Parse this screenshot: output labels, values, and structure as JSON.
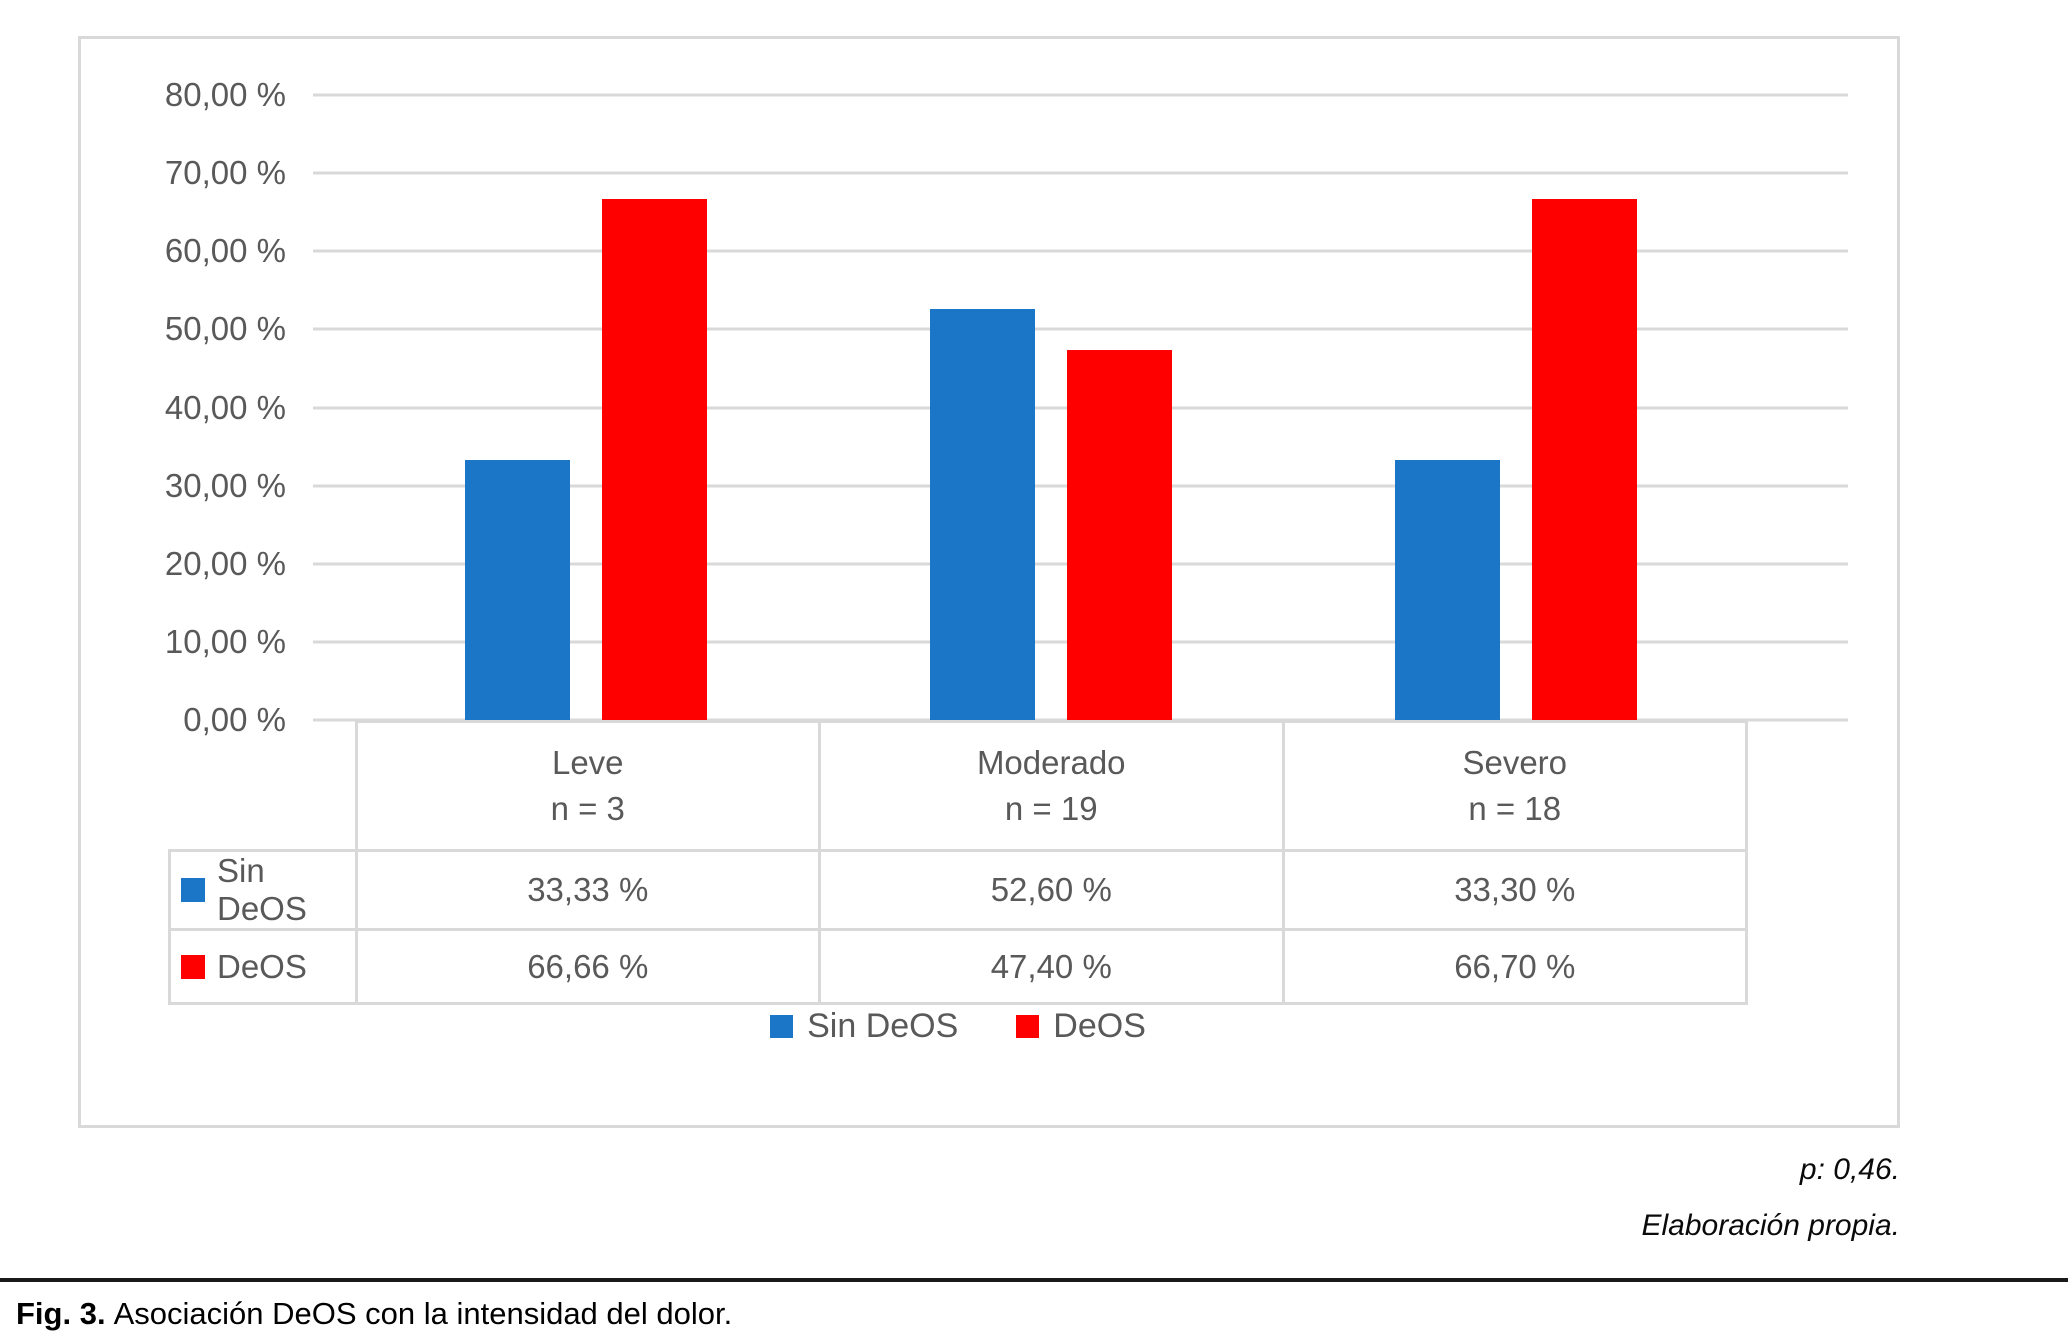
{
  "chart_data": {
    "type": "bar",
    "categories": [
      "Leve",
      "Moderado",
      "Severo"
    ],
    "category_sublabels": [
      "n = 3",
      "n = 19",
      "n = 18"
    ],
    "series": [
      {
        "name": "Sin DeOS",
        "color": "#1b76c8",
        "values": [
          33.33,
          52.6,
          33.3
        ],
        "labels": [
          "33,33 %",
          "52,60 %",
          "33,30 %"
        ]
      },
      {
        "name": "DeOS",
        "color": "#ff0000",
        "values": [
          66.66,
          47.4,
          66.7
        ],
        "labels": [
          "66,66 %",
          "47,40 %",
          "66,70 %"
        ]
      }
    ],
    "y_axis": {
      "min": 0,
      "max": 80,
      "step": 10,
      "tick_labels": [
        "80,00 %",
        "70,00 %",
        "60,00 %",
        "50,00 %",
        "40,00 %",
        "30,00 %",
        "20,00 %",
        "10,00 %",
        "0,00 %"
      ]
    },
    "grid": true,
    "legend_position": "bottom",
    "colors": {
      "gridline": "#d9d9d9",
      "axis_text": "#595959"
    }
  },
  "notes": {
    "p_value": "p: 0,46.",
    "source": "Elaboración propia."
  },
  "caption": {
    "label": "Fig. 3.",
    "text": "Asociación DeOS con la intensidad del dolor."
  }
}
